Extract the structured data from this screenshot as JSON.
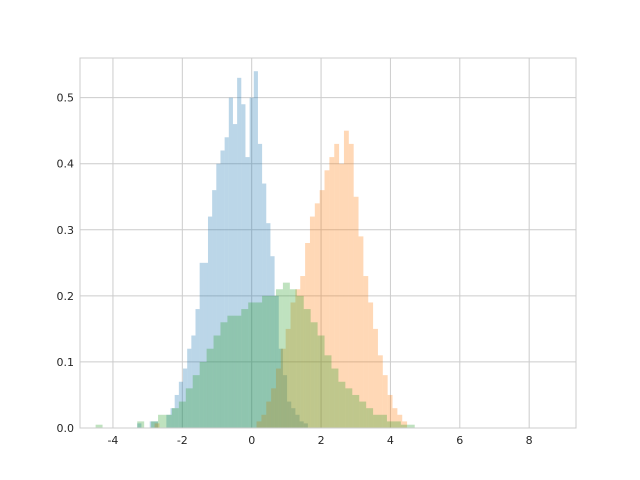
{
  "chart_data": {
    "type": "histogram",
    "style": "seaborn-whitegrid",
    "grid": true,
    "xlim": [
      -4.95,
      9.35
    ],
    "ylim": [
      0,
      0.56
    ],
    "xticks": [
      -4,
      -2,
      0,
      2,
      4,
      6,
      8
    ],
    "xtick_labels": [
      "-4",
      "-2",
      "0",
      "2",
      "4",
      "6",
      "8"
    ],
    "yticks": [
      0.0,
      0.1,
      0.2,
      0.3,
      0.4,
      0.5
    ],
    "ytick_labels": [
      "0.0",
      "0.1",
      "0.2",
      "0.3",
      "0.4",
      "0.5"
    ],
    "series": [
      {
        "color": "#1f77b4",
        "opacity": 0.3,
        "bin_start": -3.3,
        "bin_width": 0.12,
        "values": [
          0.007,
          0,
          0,
          0.01,
          0.01,
          0,
          0,
          0.02,
          0.03,
          0.05,
          0.07,
          0.09,
          0.12,
          0.14,
          0.18,
          0.25,
          0.25,
          0.32,
          0.36,
          0.4,
          0.42,
          0.44,
          0.5,
          0.46,
          0.53,
          0.49,
          0.41,
          0.5,
          0.54,
          0.43,
          0.37,
          0.31,
          0.26,
          0.2,
          0.12,
          0.08,
          0.04,
          0.03,
          0.02,
          0.01,
          0.007
        ]
      },
      {
        "color": "#ff7f0e",
        "opacity": 0.3,
        "bin_start": -2.8,
        "bin_width": 0.14,
        "values": [
          0.007,
          0,
          0,
          0,
          0,
          0,
          0,
          0,
          0,
          0,
          0,
          0,
          0,
          0,
          0,
          0,
          0,
          0,
          0,
          0,
          0,
          0.01,
          0.02,
          0.04,
          0.06,
          0.09,
          0.12,
          0.15,
          0.19,
          0.21,
          0.23,
          0.28,
          0.32,
          0.34,
          0.36,
          0.39,
          0.41,
          0.43,
          0.4,
          0.45,
          0.43,
          0.35,
          0.29,
          0.23,
          0.19,
          0.15,
          0.11,
          0.08,
          0.05,
          0.03,
          0.02,
          0.01
        ]
      },
      {
        "color": "#2ca02c",
        "opacity": 0.3,
        "bin_start": -4.5,
        "bin_width": 0.2,
        "values": [
          0.005,
          0,
          0,
          0,
          0,
          0,
          0.01,
          0,
          0.01,
          0.02,
          0.02,
          0.03,
          0.04,
          0.06,
          0.08,
          0.1,
          0.12,
          0.14,
          0.16,
          0.17,
          0.17,
          0.18,
          0.19,
          0.19,
          0.2,
          0.2,
          0.21,
          0.22,
          0.21,
          0.2,
          0.18,
          0.16,
          0.14,
          0.11,
          0.09,
          0.07,
          0.06,
          0.05,
          0.04,
          0.03,
          0.02,
          0.02,
          0.01,
          0.01,
          0.005,
          0.005
        ]
      }
    ]
  }
}
